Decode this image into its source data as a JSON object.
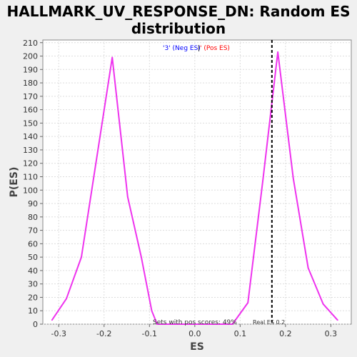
{
  "chart_data": {
    "type": "line",
    "title_lines": [
      "HALLMARK_UV_RESPONSE_DN: Random ES",
      "distribution"
    ],
    "xlabel": "ES",
    "ylabel": "P(ES)",
    "xlim": [
      -0.335,
      0.345
    ],
    "ylim": [
      0,
      212
    ],
    "x_ticks": [
      -0.3,
      -0.2,
      -0.1,
      0.0,
      0.1,
      0.2,
      0.3
    ],
    "x_tick_labels": [
      "-0.3",
      "-0.2",
      "-0.1",
      "0.0",
      "0.1",
      "0.2",
      "0.3"
    ],
    "y_ticks": [
      0,
      10,
      20,
      30,
      40,
      50,
      60,
      70,
      80,
      90,
      100,
      110,
      120,
      130,
      140,
      150,
      160,
      170,
      180,
      190,
      200,
      210
    ],
    "grid": true,
    "legend": {
      "placement": "top-center",
      "neg_label": "'3' (Neg ES)",
      "sep": "|",
      "pos_label": "' (Pos ES)"
    },
    "series": [
      {
        "color": "#ee33ee",
        "x": [
          -0.315,
          -0.283,
          -0.25,
          -0.182,
          -0.148,
          -0.118,
          -0.095,
          -0.083,
          0.083,
          0.117,
          0.15,
          0.183,
          0.217,
          0.25,
          0.283,
          0.315
        ],
        "values": [
          3,
          19,
          50,
          199,
          95,
          50,
          10,
          0,
          0,
          16,
          107,
          203,
          109,
          42,
          15,
          3
        ]
      }
    ],
    "annotations": {
      "real_es": 0.17,
      "real_es_label": "Real ES 0.2",
      "pos_scores_label": "Sets with pos scores: 49%"
    },
    "colors": {
      "neg_label": "#0000ff",
      "pos_label": "#ff0000",
      "background": "#f0f0f0",
      "plot_bg": "#ffffff"
    }
  }
}
